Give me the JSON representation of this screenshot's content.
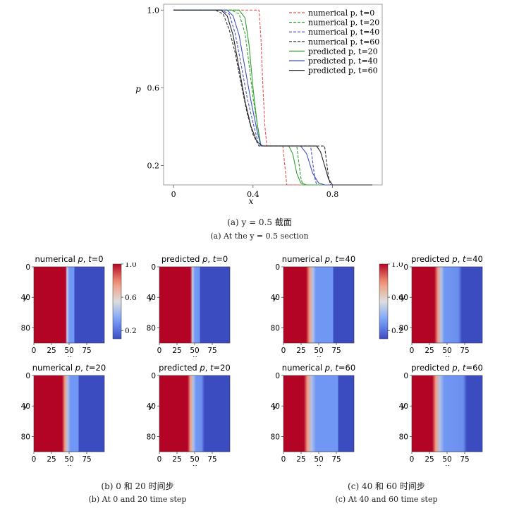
{
  "chart_data": [
    {
      "type": "line",
      "xlabel": "x",
      "ylabel": "p",
      "xlim": [
        -0.05,
        1.05
      ],
      "ylim": [
        0.1,
        1.03
      ],
      "xticks": [
        "0",
        "0.4",
        "0.8"
      ],
      "yticks": [
        "1.0",
        "0.6",
        "0.2"
      ],
      "legend": "top-right",
      "series": [
        {
          "name": "numerical p, t=0",
          "style": "dashed",
          "color": "#f05050",
          "x": [
            0,
            0.43,
            0.44,
            0.45,
            0.46,
            0.47,
            0.55,
            0.56,
            0.57,
            1.0
          ],
          "y": [
            1.0,
            1.0,
            0.85,
            0.6,
            0.4,
            0.3,
            0.3,
            0.2,
            0.1,
            0.1
          ]
        },
        {
          "name": "numerical p, t=20",
          "style": "dashed",
          "color": "#30a030",
          "x": [
            0,
            0.29,
            0.33,
            0.36,
            0.38,
            0.4,
            0.42,
            0.44,
            0.62,
            0.63,
            0.64,
            0.65,
            1.0
          ],
          "y": [
            1.0,
            1.0,
            0.98,
            0.88,
            0.72,
            0.55,
            0.42,
            0.3,
            0.3,
            0.22,
            0.14,
            0.1,
            0.1
          ]
        },
        {
          "name": "numerical p, t=40",
          "style": "dashed",
          "color": "#4050c0",
          "x": [
            0,
            0.24,
            0.28,
            0.31,
            0.34,
            0.37,
            0.4,
            0.43,
            0.69,
            0.7,
            0.71,
            0.72,
            1.0
          ],
          "y": [
            1.0,
            1.0,
            0.98,
            0.88,
            0.72,
            0.55,
            0.42,
            0.3,
            0.3,
            0.22,
            0.14,
            0.1,
            0.1
          ]
        },
        {
          "name": "numerical p, t=60",
          "style": "dashed",
          "color": "#333333",
          "x": [
            0,
            0.21,
            0.25,
            0.28,
            0.31,
            0.34,
            0.37,
            0.4,
            0.43,
            0.76,
            0.77,
            0.78,
            0.79,
            1.0
          ],
          "y": [
            1.0,
            1.0,
            0.98,
            0.9,
            0.78,
            0.62,
            0.47,
            0.36,
            0.3,
            0.3,
            0.22,
            0.14,
            0.1,
            0.1
          ]
        },
        {
          "name": "predicted p, t=20",
          "style": "solid",
          "color": "#30a030",
          "x": [
            0,
            0.33,
            0.36,
            0.38,
            0.4,
            0.42,
            0.44,
            0.58,
            0.6,
            0.62,
            0.64,
            0.67,
            1.0
          ],
          "y": [
            1.0,
            1.0,
            0.96,
            0.82,
            0.6,
            0.42,
            0.3,
            0.3,
            0.26,
            0.16,
            0.11,
            0.1,
            0.1
          ]
        },
        {
          "name": "predicted p, t=40",
          "style": "solid",
          "color": "#4050c0",
          "x": [
            0,
            0.27,
            0.3,
            0.33,
            0.36,
            0.39,
            0.42,
            0.44,
            0.64,
            0.67,
            0.7,
            0.73,
            0.76,
            1.0
          ],
          "y": [
            1.0,
            1.0,
            0.97,
            0.87,
            0.7,
            0.53,
            0.38,
            0.3,
            0.3,
            0.26,
            0.16,
            0.11,
            0.1,
            0.1
          ]
        },
        {
          "name": "predicted p, t=60",
          "style": "solid",
          "color": "#222222",
          "x": [
            0,
            0.24,
            0.27,
            0.3,
            0.33,
            0.36,
            0.39,
            0.42,
            0.45,
            0.72,
            0.74,
            0.76,
            0.78,
            0.8,
            1.0
          ],
          "y": [
            1.0,
            1.0,
            0.97,
            0.87,
            0.7,
            0.53,
            0.4,
            0.32,
            0.3,
            0.3,
            0.27,
            0.2,
            0.13,
            0.1,
            0.1
          ]
        }
      ]
    },
    {
      "type": "heatmap",
      "title_prefix": "numerical",
      "title_var": "p",
      "title_time": "t=0",
      "xlabel": "x",
      "ylabel": "y",
      "xticks": [
        "0",
        "25",
        "50",
        "75"
      ],
      "yticks": [
        "0",
        "40",
        "80"
      ],
      "profile": {
        "x": [
          0,
          45,
          47,
          50,
          52,
          57,
          58,
          100
        ],
        "v": [
          1.0,
          1.0,
          0.5,
          0.32,
          0.3,
          0.3,
          0.1,
          0.1
        ]
      }
    },
    {
      "type": "heatmap",
      "title_prefix": "predicted",
      "title_var": "p",
      "title_time": "t=0",
      "xlabel": "x",
      "ylabel": "y",
      "xticks": [
        "0",
        "25",
        "50",
        "75"
      ],
      "yticks": [
        "0",
        "40",
        "80"
      ],
      "profile": {
        "x": [
          0,
          44,
          47,
          50,
          52,
          57,
          58,
          100
        ],
        "v": [
          1.0,
          1.0,
          0.5,
          0.32,
          0.3,
          0.3,
          0.1,
          0.1
        ]
      }
    },
    {
      "type": "heatmap",
      "title_prefix": "numerical",
      "title_var": "p",
      "title_time": "t=20",
      "xlabel": "x",
      "ylabel": "y",
      "xticks": [
        "0",
        "25",
        "50",
        "75"
      ],
      "yticks": [
        "0",
        "40",
        "80"
      ],
      "profile": {
        "x": [
          0,
          40,
          44,
          48,
          52,
          63,
          64,
          100
        ],
        "v": [
          1.0,
          1.0,
          0.75,
          0.45,
          0.3,
          0.3,
          0.1,
          0.1
        ]
      }
    },
    {
      "type": "heatmap",
      "title_prefix": "predicted",
      "title_var": "p",
      "title_time": "t=20",
      "xlabel": "x",
      "ylabel": "y",
      "xticks": [
        "0",
        "25",
        "50",
        "75"
      ],
      "yticks": [
        "0",
        "40",
        "80"
      ],
      "profile": {
        "x": [
          0,
          40,
          44,
          48,
          52,
          60,
          64,
          100
        ],
        "v": [
          1.0,
          1.0,
          0.75,
          0.45,
          0.3,
          0.28,
          0.1,
          0.1
        ]
      }
    },
    {
      "type": "heatmap",
      "title_prefix": "numerical",
      "title_var": "p",
      "title_time": "t=40",
      "xlabel": "x",
      "ylabel": "y",
      "xticks": [
        "0",
        "25",
        "50",
        "75"
      ],
      "yticks": [
        "0",
        "40",
        "80"
      ],
      "profile": {
        "x": [
          0,
          32,
          37,
          42,
          46,
          70,
          71,
          100
        ],
        "v": [
          1.0,
          1.0,
          0.75,
          0.45,
          0.3,
          0.3,
          0.1,
          0.1
        ]
      }
    },
    {
      "type": "heatmap",
      "title_prefix": "predicted",
      "title_var": "p",
      "title_time": "t=40",
      "xlabel": "x",
      "ylabel": "y",
      "xticks": [
        "0",
        "25",
        "50",
        "75"
      ],
      "yticks": [
        "0",
        "40",
        "80"
      ],
      "profile": {
        "x": [
          0,
          32,
          37,
          42,
          46,
          66,
          71,
          100
        ],
        "v": [
          1.0,
          1.0,
          0.75,
          0.45,
          0.3,
          0.28,
          0.1,
          0.1
        ]
      }
    },
    {
      "type": "heatmap",
      "title_prefix": "numerical",
      "title_var": "p",
      "title_time": "t=60",
      "xlabel": "x",
      "ylabel": "y",
      "xticks": [
        "0",
        "25",
        "50",
        "75"
      ],
      "yticks": [
        "0",
        "40",
        "80"
      ],
      "profile": {
        "x": [
          0,
          29,
          34,
          40,
          46,
          77,
          78,
          100
        ],
        "v": [
          1.0,
          1.0,
          0.75,
          0.45,
          0.3,
          0.3,
          0.1,
          0.1
        ]
      }
    },
    {
      "type": "heatmap",
      "title_prefix": "predicted",
      "title_var": "p",
      "title_time": "t=60",
      "xlabel": "x",
      "ylabel": "y",
      "xticks": [
        "0",
        "25",
        "50",
        "75"
      ],
      "yticks": [
        "0",
        "40",
        "80"
      ],
      "profile": {
        "x": [
          0,
          29,
          34,
          40,
          46,
          73,
          78,
          100
        ],
        "v": [
          1.0,
          1.0,
          0.75,
          0.45,
          0.3,
          0.28,
          0.1,
          0.1
        ]
      }
    }
  ],
  "colorbar": {
    "ticks": [
      "1.0",
      "0.6",
      "0.2"
    ],
    "range": [
      0.1,
      1.0
    ],
    "colormap": "coolwarm"
  },
  "captions": {
    "a_zh": "(a) y = 0.5 截面",
    "a_en": "(a) At the y = 0.5 section",
    "b_zh": "(b) 0 和 20 时间步",
    "b_en": "(b) At 0 and 20 time step",
    "c_zh": "(c) 40 和 60 时间步",
    "c_en": "(c) At 40 and 60 time step"
  }
}
